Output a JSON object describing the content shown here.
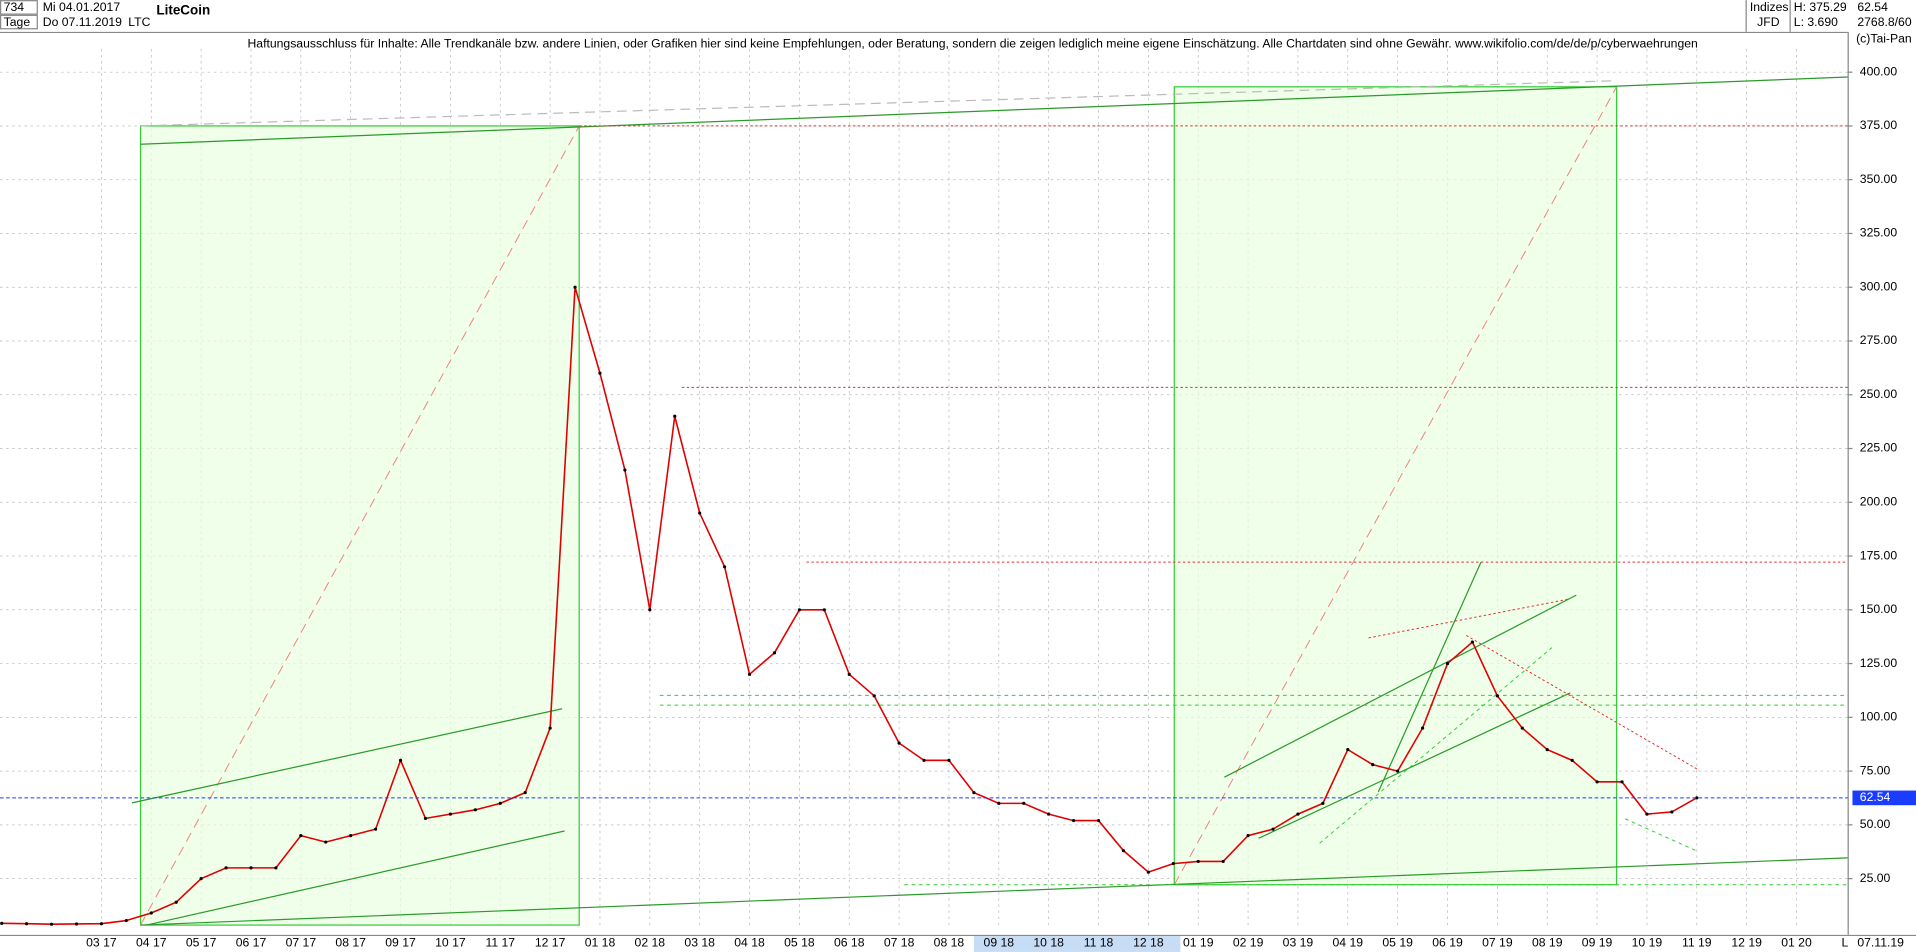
{
  "header": {
    "count": "734",
    "start": "Mi 04.01.2017",
    "period": "Tage",
    "end": "Do 07.11.2019",
    "symbol": "LTC",
    "name": "LiteCoin",
    "disclaimer": "Haftungsausschluss für Inhalte: Alle Trendkanäle bzw. andere Linien, oder Grafiken hier sind keine Empfehlungen, oder Beratung, sondern die zeigen lediglich meine eigene Einschätzung. Alle Chartdaten sind ohne Gewähr.  www.wikifolio.com/de/de/p/cyberwaehrungen",
    "group": "Indizes",
    "source": "JFD",
    "high": "H: 375.29",
    "low": "L: 3.690",
    "last": "62.54",
    "info": "2768.8/60",
    "copyright": "(c)Tai-Pan",
    "date": "07.11.19",
    "scale": "L"
  },
  "chart_data": {
    "type": "line",
    "color": "#e00000",
    "grid": true,
    "last_value": 62.54,
    "last_color": "#1a3cff",
    "categories": [
      null,
      null,
      null,
      null,
      "03 17",
      null,
      "04 17",
      null,
      "05 17",
      null,
      "06 17",
      null,
      "07 17",
      null,
      "08 17",
      null,
      "09 17",
      null,
      "10 17",
      null,
      "11 17",
      null,
      "12 17",
      null,
      "01 18",
      null,
      "02 18",
      null,
      "03 18",
      null,
      "04 18",
      null,
      "05 18",
      null,
      "06 18",
      null,
      "07 18",
      null,
      "08 18",
      null,
      "09 18",
      null,
      "10 18",
      null,
      "11 18",
      null,
      "12 18",
      null,
      "01 19",
      null,
      "02 19",
      null,
      "03 19",
      null,
      "04 19",
      null,
      "05 19",
      null,
      "06 19",
      null,
      "07 19",
      null,
      "08 19",
      null,
      "09 19",
      null,
      "10 19",
      null,
      "11 19",
      null,
      "12 19",
      null,
      "01 20",
      null
    ],
    "values": [
      4.2,
      4.0,
      3.8,
      3.9,
      4.0,
      5.5,
      9,
      14,
      25,
      30,
      30,
      30,
      45,
      42,
      45,
      48,
      80,
      53,
      55,
      57,
      60,
      65,
      95,
      300,
      260,
      215,
      150,
      240,
      195,
      170,
      120,
      130,
      150,
      150,
      120,
      110,
      88,
      80,
      80,
      65,
      60,
      60,
      55,
      52,
      52,
      38,
      28,
      32,
      33,
      33,
      45,
      48,
      55,
      60,
      85,
      78,
      75,
      95,
      125,
      135,
      110,
      95,
      85,
      80,
      70,
      70,
      55,
      56,
      62.54,
      null,
      null,
      null,
      null,
      null
    ],
    "ylim": [
      3.4,
      418.2
    ],
    "yticks": [
      {
        "value": 25,
        "label": "25.00"
      },
      {
        "value": 50,
        "label": "50.00"
      },
      {
        "value": 75,
        "label": "75.00"
      },
      {
        "value": 100,
        "label": "100.00"
      },
      {
        "value": 125,
        "label": "125.00"
      },
      {
        "value": 150,
        "label": "150.00"
      },
      {
        "value": 175,
        "label": "175.00"
      },
      {
        "value": 200,
        "label": "200.00"
      },
      {
        "value": 225,
        "label": "225.00"
      },
      {
        "value": 250,
        "label": "250.00"
      },
      {
        "value": 275,
        "label": "275.00"
      },
      {
        "value": 300,
        "label": "300.00"
      },
      {
        "value": 325,
        "label": "325.00"
      },
      {
        "value": 350,
        "label": "350.00"
      },
      {
        "value": 375,
        "label": "375.00"
      },
      {
        "value": 400,
        "label": "400.00"
      }
    ]
  }
}
